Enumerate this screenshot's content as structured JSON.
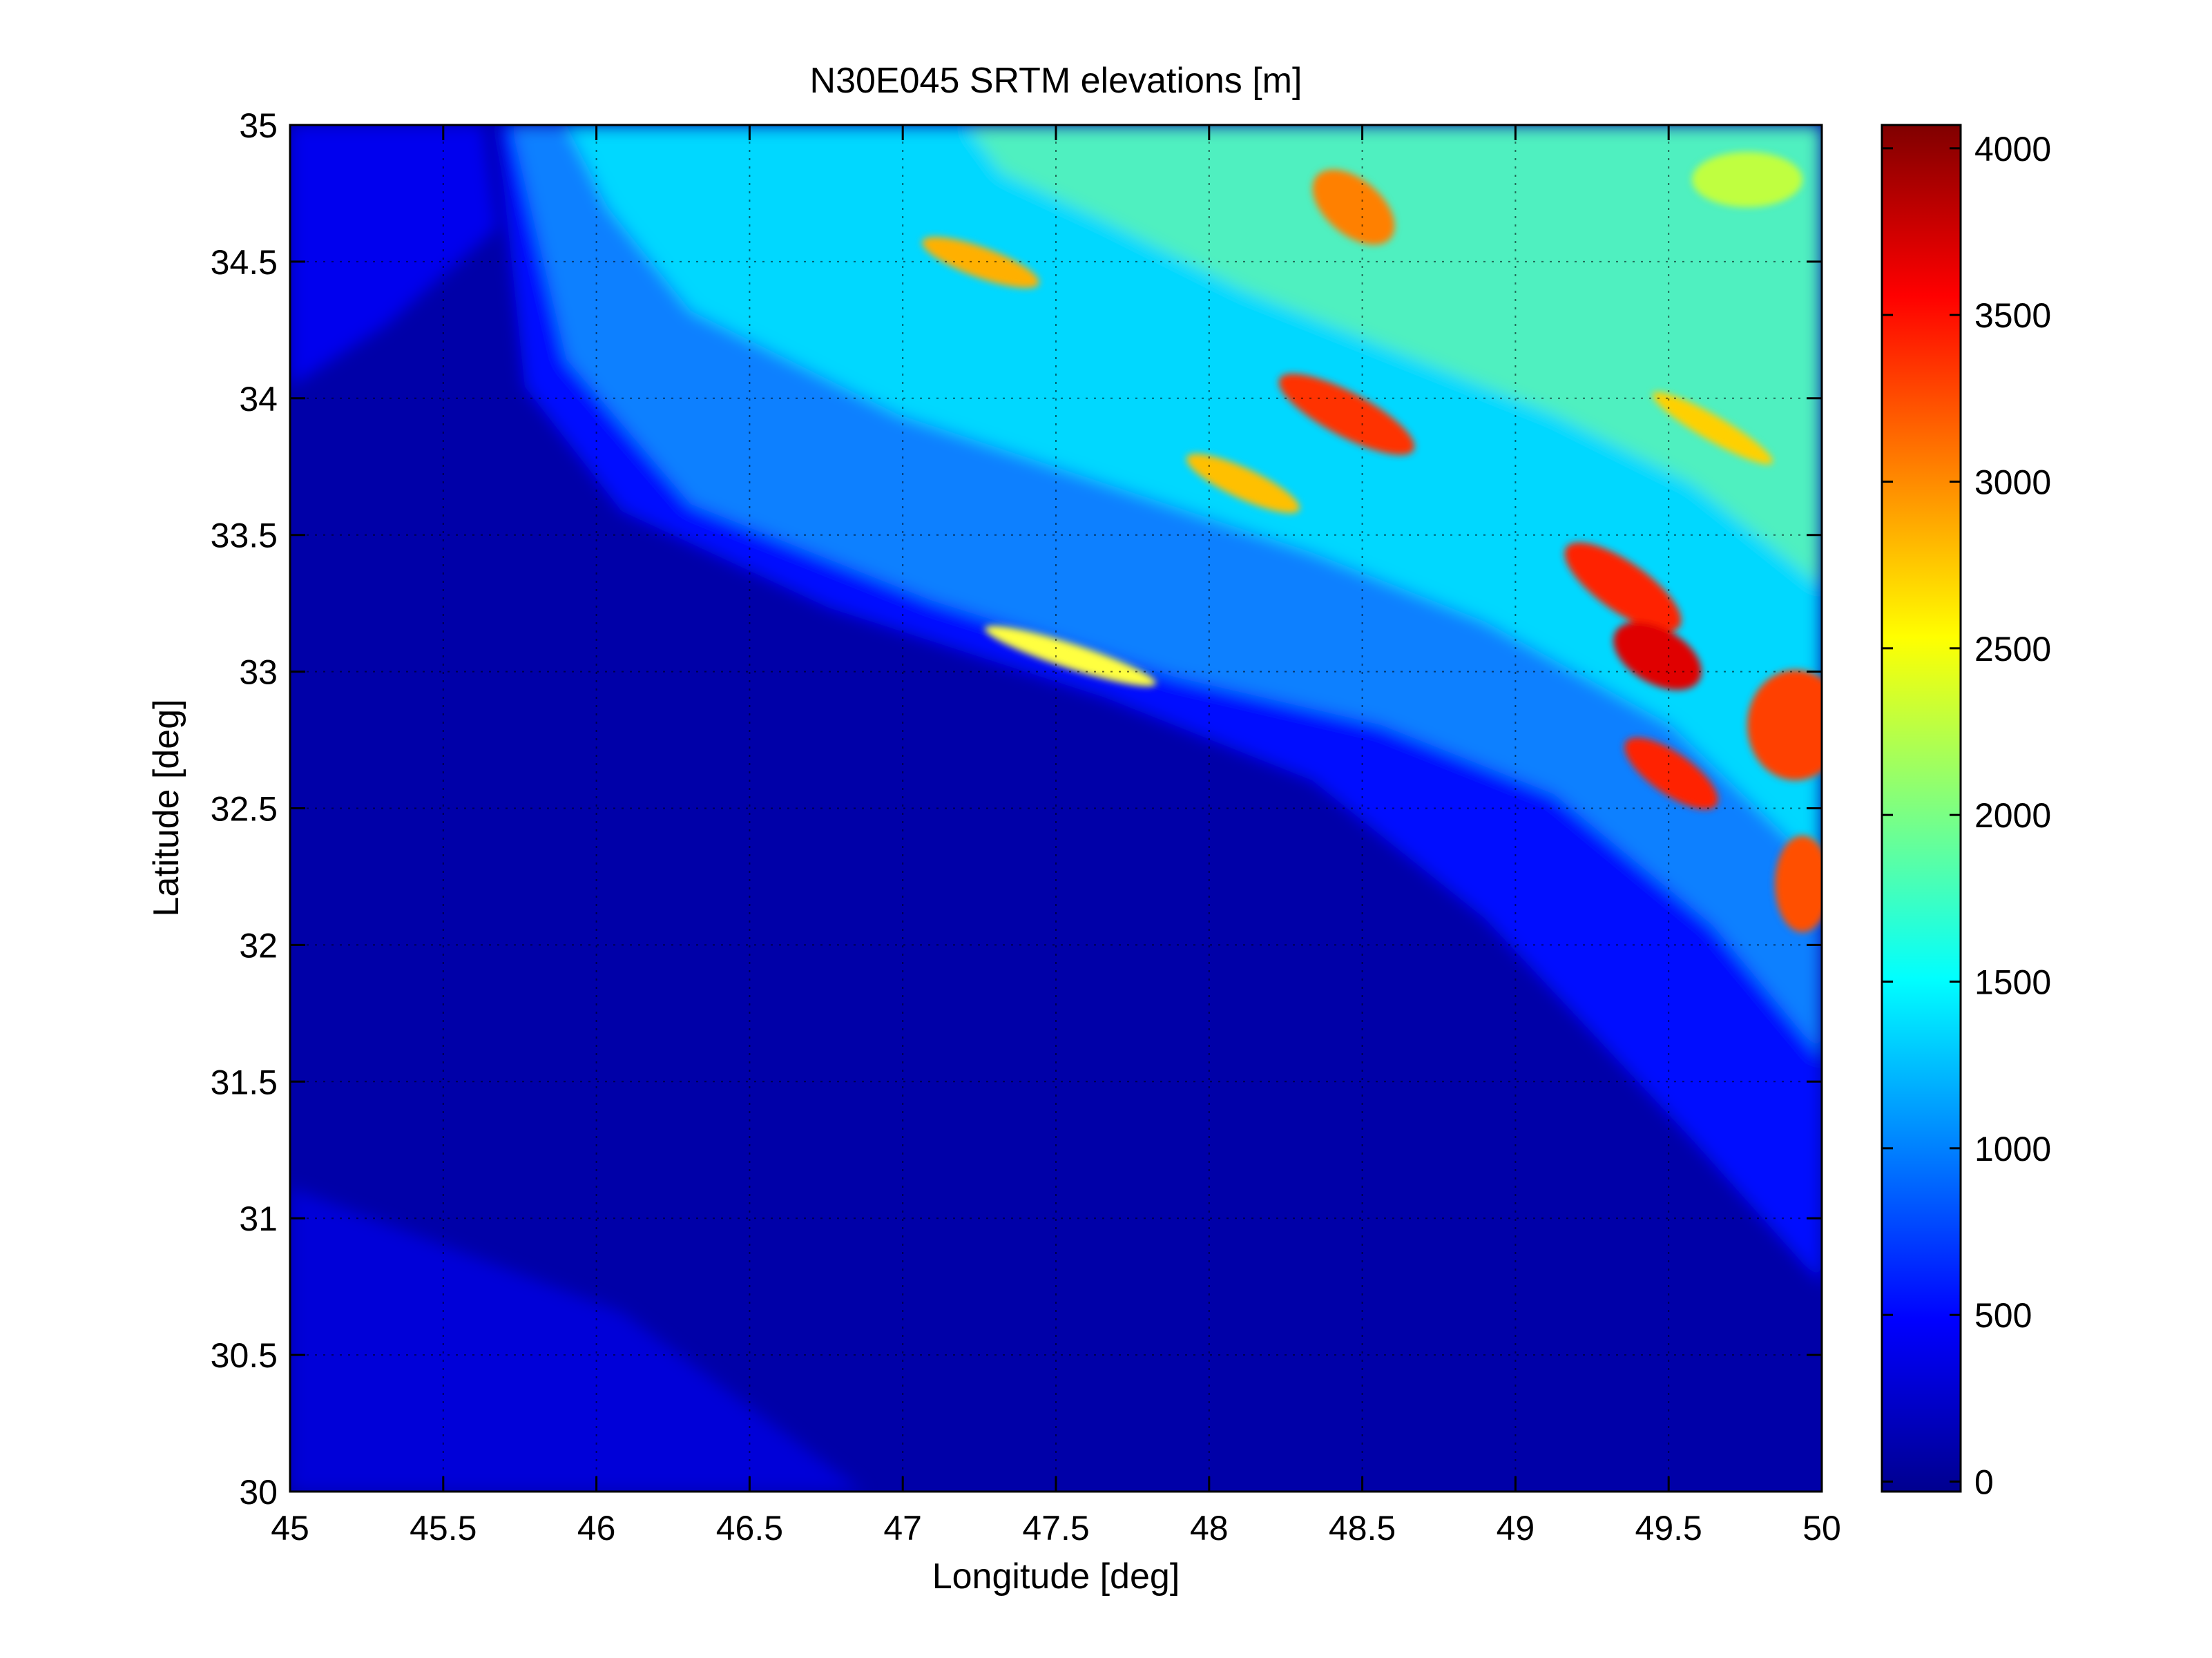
{
  "chart_data": {
    "type": "heatmap",
    "title": "N30E045 SRTM elevations [m]",
    "xlabel": "Longitude [deg]",
    "ylabel": "Latitude [deg]",
    "xlim": [
      45,
      50
    ],
    "ylim": [
      30,
      35
    ],
    "grid": true,
    "colormap": "jet",
    "x_ticks": [
      "45",
      "45.5",
      "46",
      "46.5",
      "47",
      "47.5",
      "48",
      "48.5",
      "49",
      "49.5",
      "50"
    ],
    "y_ticks": [
      "30",
      "30.5",
      "31",
      "31.5",
      "32",
      "32.5",
      "33",
      "33.5",
      "34",
      "34.5",
      "35"
    ],
    "colorbar": {
      "range": [
        -30,
        4070
      ],
      "ticks": [
        {
          "value": 0,
          "label": "0"
        },
        {
          "value": 500,
          "label": "500"
        },
        {
          "value": 1000,
          "label": "1000"
        },
        {
          "value": 1500,
          "label": "1500"
        },
        {
          "value": 2000,
          "label": "2000"
        },
        {
          "value": 2500,
          "label": "2500"
        },
        {
          "value": 3000,
          "label": "3000"
        },
        {
          "value": 3500,
          "label": "3500"
        },
        {
          "value": 4000,
          "label": "4000"
        }
      ]
    }
  }
}
